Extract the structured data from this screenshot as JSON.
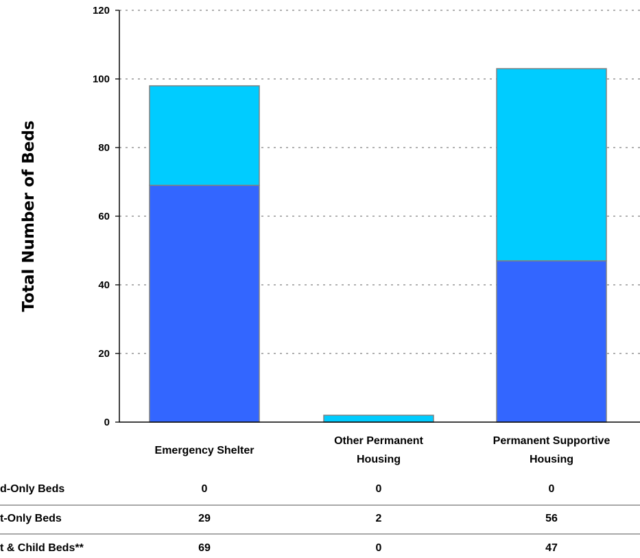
{
  "chart_data": {
    "type": "bar",
    "stacked": true,
    "categories": [
      [
        "Emergency Shelter"
      ],
      [
        "Other Permanent",
        "Housing"
      ],
      [
        "Permanent Supportive",
        "Housing"
      ]
    ],
    "ylabel": "Total Number of Beds",
    "ylim": [
      0,
      120
    ],
    "yticks": [
      0,
      20,
      40,
      60,
      80,
      100,
      120
    ],
    "grid": "horizontal-dashed",
    "series": [
      {
        "name": "Adult & Child Beds**",
        "values": [
          69,
          0,
          47
        ],
        "color": "#3366ff"
      },
      {
        "name": "Adult-Only Beds",
        "values": [
          29,
          2,
          56
        ],
        "color": "#00ccff"
      },
      {
        "name": "Child-Only Beds",
        "values": [
          0,
          0,
          0
        ],
        "color": "#ff9900"
      }
    ]
  },
  "table": {
    "rows": [
      {
        "label": "Child-Only Beds",
        "visible_label": "d-Only Beds",
        "values": [
          "0",
          "0",
          "0"
        ]
      },
      {
        "label": "Adult-Only Beds",
        "visible_label": "t-Only Beds",
        "values": [
          "29",
          "2",
          "56"
        ]
      },
      {
        "label": "Adult & Child Beds**",
        "visible_label": "t & Child Beds**",
        "values": [
          "69",
          "0",
          "47"
        ]
      }
    ]
  }
}
